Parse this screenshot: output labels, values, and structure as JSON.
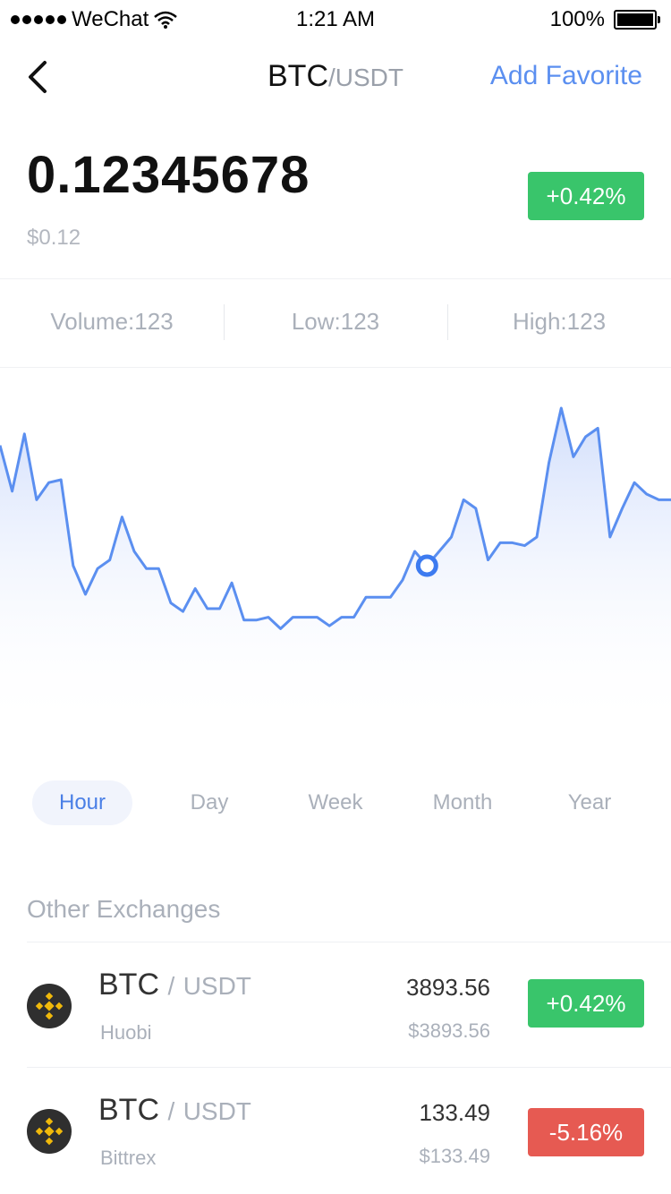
{
  "status_bar": {
    "carrier": "WeChat",
    "time": "1:21 AM",
    "battery": "100%"
  },
  "nav": {
    "base": "BTC",
    "quote": "/USDT",
    "favorite": "Add Favorite"
  },
  "price": {
    "value": "0.12345678",
    "usd": "$0.12",
    "change": "+0.42%"
  },
  "stats": {
    "volume": "Volume:123",
    "low": "Low:123",
    "high": "High:123"
  },
  "chart_data": {
    "type": "area",
    "values": [
      82,
      66,
      86,
      63,
      69,
      70,
      40,
      30,
      39,
      42,
      57,
      45,
      39,
      39,
      27,
      24,
      32,
      25,
      25,
      34,
      21,
      21,
      22,
      18,
      22,
      22,
      22,
      19,
      22,
      22,
      29,
      29,
      29,
      35,
      45,
      40,
      45,
      50,
      63,
      60,
      42,
      48,
      48,
      47,
      50,
      76,
      95,
      78,
      85,
      88,
      50,
      60,
      69,
      65,
      63,
      63
    ],
    "highlight_index": 35
  },
  "periods": {
    "hour": "Hour",
    "day": "Day",
    "week": "Week",
    "month": "Month",
    "year": "Year",
    "active": "Hour"
  },
  "exchanges": {
    "title": "Other Exchanges",
    "items": [
      {
        "base": "BTC",
        "sep": "/",
        "quote": "USDT",
        "name": "Huobi",
        "price": "3893.56",
        "usd": "$3893.56",
        "change": "+0.42%",
        "trend": "up"
      },
      {
        "base": "BTC",
        "sep": "/",
        "quote": "USDT",
        "name": "Bittrex",
        "price": "133.49",
        "usd": "$133.49",
        "change": "-5.16%",
        "trend": "down"
      }
    ]
  },
  "colors": {
    "accent": "#5b8ff0",
    "up": "#39c56b",
    "down": "#e65a52"
  }
}
